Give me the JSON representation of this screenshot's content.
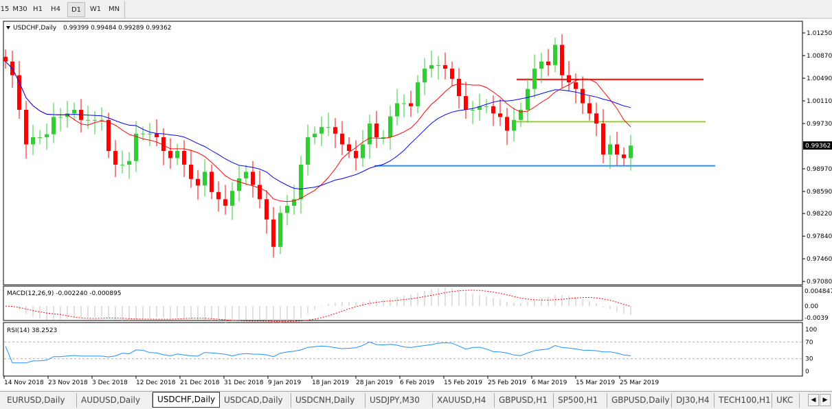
{
  "timeframes": [
    {
      "label": "15"
    },
    {
      "label": "M30"
    },
    {
      "label": "H1"
    },
    {
      "label": "H4"
    },
    {
      "label": "D1",
      "active": true
    },
    {
      "label": "W1"
    },
    {
      "label": "MN"
    }
  ],
  "header": {
    "symbol": "USDCHF,Daily",
    "ohlc": "0.99399 0.99484 0.99289 0.99362"
  },
  "chart_data": {
    "type": "candlestick",
    "symbol": "USDCHF",
    "period": "Daily",
    "ylim": [
      0.9708,
      1.0135
    ],
    "y_ticks": [
      "1.01250",
      "1.00870",
      "1.00490",
      "1.00110",
      "0.99730",
      "0.98970",
      "0.98590",
      "0.98220",
      "0.97840",
      "0.97460",
      "0.97080"
    ],
    "current_price": "0.99362",
    "x_ticks": [
      "14 Nov 2018",
      "23 Nov 2018",
      "3 Dec 2018",
      "12 Dec 2018",
      "21 Dec 2018",
      "31 Dec 2018",
      "9 Jan 2019",
      "18 Jan 2019",
      "28 Jan 2019",
      "6 Feb 2019",
      "15 Feb 2019",
      "25 Feb 2019",
      "6 Mar 2019",
      "15 Mar 2019",
      "25 Mar 2019"
    ],
    "close": [
      1.0077,
      1.0054,
      0.9996,
      0.9938,
      0.995,
      0.995,
      0.9955,
      0.9984,
      0.9984,
      0.999,
      0.9996,
      0.9979,
      0.9979,
      0.9979,
      0.9979,
      0.9927,
      0.9904,
      0.9904,
      0.991,
      0.9956,
      0.9956,
      0.9956,
      0.995,
      0.9927,
      0.9915,
      0.9927,
      0.9904,
      0.988,
      0.9869,
      0.9892,
      0.9858,
      0.9846,
      0.9835,
      0.986,
      0.9881,
      0.9892,
      0.987,
      0.9846,
      0.9812,
      0.9766,
      0.9823,
      0.9835,
      0.9846,
      0.9904,
      0.995,
      0.9956,
      0.9967,
      0.9967,
      0.9956,
      0.9938,
      0.9927,
      0.9915,
      0.9938,
      0.9973,
      0.995,
      0.995,
      0.9985,
      1.0007,
      1.0007,
      1.0002,
      1.0042,
      1.0065,
      1.0071,
      1.0071,
      1.0065,
      1.0048,
      1.0019,
      0.9996,
      0.9996,
      1.0002,
      1.0002,
      0.999,
      0.9984,
      0.9961,
      0.9979,
      0.9996,
      1.0031,
      1.0065,
      1.0077,
      1.0071,
      1.0105,
      1.0054,
      1.0042,
      1.0031,
      1.0007,
      0.999,
      0.9973,
      0.9921,
      0.9938,
      0.9921,
      0.9915,
      0.9936
    ],
    "moving_averages": [
      {
        "period": 10,
        "color": "#ff0000"
      },
      {
        "period": 20,
        "color": "#0000ff"
      }
    ],
    "levels": [
      {
        "price": 1.0047,
        "color": "#ff0000"
      },
      {
        "price": 0.9976,
        "color": "#9acd32"
      },
      {
        "price": 0.9902,
        "color": "#1e90ff"
      }
    ],
    "colors": {
      "bull": "#32cd32",
      "bear": "#ff0000"
    },
    "macd": {
      "label": "MACD(12,26,9) -0.002240 -0.000895",
      "ticks": [
        "0.004847",
        "0.00",
        "-0.0039"
      ]
    },
    "rsi": {
      "label": "RSI(14) 38.2523",
      "ticks": [
        "100",
        "70",
        "30",
        "0"
      ],
      "levels": [
        70,
        30
      ]
    }
  },
  "tabs": [
    {
      "label": "EURUSD,Daily"
    },
    {
      "label": "AUDUSD,Daily"
    },
    {
      "label": "USDCHF,Daily",
      "active": true
    },
    {
      "label": "USDCAD,Daily"
    },
    {
      "label": "USDCNH,Daily"
    },
    {
      "label": "USDJPY,M30"
    },
    {
      "label": "XAUUSD,H4"
    },
    {
      "label": "GBPUSD,H1"
    },
    {
      "label": "SP500,H1"
    },
    {
      "label": "GBPUSD,Daily"
    },
    {
      "label": "DJ30,H4"
    },
    {
      "label": "TECH100,H1"
    },
    {
      "label": "UKC"
    }
  ]
}
